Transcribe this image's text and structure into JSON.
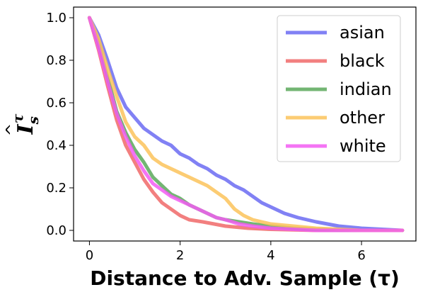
{
  "chart_data": {
    "type": "line",
    "xlabel": "Distance to Adv. Sample (τ)",
    "ylabel": {
      "base": "I",
      "superscript": "τ",
      "subscript": "s",
      "hat": "^"
    },
    "xlim": [
      -0.35,
      7.2
    ],
    "ylim": [
      -0.05,
      1.05
    ],
    "x_ticks": [
      0,
      2,
      4,
      6
    ],
    "y_ticks": [
      0.0,
      0.2,
      0.4,
      0.6,
      0.8,
      1.0
    ],
    "x_tick_labels": [
      "0",
      "2",
      "4",
      "6"
    ],
    "y_tick_labels": [
      "0.0",
      "0.2",
      "0.4",
      "0.6",
      "0.8",
      "1.0"
    ],
    "grid": false,
    "legend_position": "top-right",
    "series": [
      {
        "name": "asian",
        "color": "#6b6bf2",
        "x": [
          0,
          0.2,
          0.4,
          0.6,
          0.8,
          1.0,
          1.2,
          1.4,
          1.6,
          1.8,
          2.0,
          2.2,
          2.4,
          2.6,
          2.8,
          3.0,
          3.2,
          3.4,
          3.6,
          3.8,
          4.0,
          4.3,
          4.6,
          5.0,
          5.5,
          6.0,
          6.9
        ],
        "values": [
          1.0,
          0.92,
          0.8,
          0.67,
          0.58,
          0.53,
          0.48,
          0.45,
          0.42,
          0.4,
          0.36,
          0.34,
          0.31,
          0.29,
          0.26,
          0.24,
          0.21,
          0.19,
          0.16,
          0.13,
          0.11,
          0.08,
          0.06,
          0.04,
          0.02,
          0.01,
          0.0
        ]
      },
      {
        "name": "black",
        "color": "#f06868",
        "x": [
          0,
          0.2,
          0.4,
          0.6,
          0.8,
          1.0,
          1.2,
          1.4,
          1.6,
          1.8,
          2.0,
          2.2,
          2.5,
          3.0,
          3.5,
          4.0,
          5.0,
          6.0,
          6.9
        ],
        "values": [
          1.0,
          0.85,
          0.68,
          0.52,
          0.4,
          0.32,
          0.24,
          0.18,
          0.13,
          0.1,
          0.07,
          0.05,
          0.04,
          0.02,
          0.01,
          0.005,
          0.0,
          0.0,
          0.0
        ]
      },
      {
        "name": "indian",
        "color": "#5aa85a",
        "x": [
          0,
          0.2,
          0.4,
          0.6,
          0.8,
          1.0,
          1.2,
          1.4,
          1.6,
          1.8,
          2.0,
          2.2,
          2.4,
          2.6,
          2.8,
          3.0,
          3.3,
          3.6,
          4.0,
          4.5,
          5.0,
          6.0,
          6.9
        ],
        "values": [
          1.0,
          0.88,
          0.72,
          0.56,
          0.46,
          0.38,
          0.32,
          0.25,
          0.21,
          0.17,
          0.15,
          0.12,
          0.1,
          0.08,
          0.06,
          0.05,
          0.04,
          0.03,
          0.02,
          0.01,
          0.005,
          0.0,
          0.0
        ]
      },
      {
        "name": "other",
        "color": "#fbc35a",
        "x": [
          0,
          0.2,
          0.4,
          0.6,
          0.8,
          1.0,
          1.2,
          1.4,
          1.6,
          1.8,
          2.0,
          2.2,
          2.4,
          2.6,
          2.8,
          3.0,
          3.2,
          3.4,
          3.6,
          3.8,
          4.0,
          4.5,
          5.0,
          6.0,
          6.9
        ],
        "values": [
          1.0,
          0.9,
          0.76,
          0.63,
          0.51,
          0.44,
          0.4,
          0.34,
          0.31,
          0.29,
          0.27,
          0.25,
          0.23,
          0.21,
          0.18,
          0.15,
          0.1,
          0.07,
          0.05,
          0.04,
          0.03,
          0.02,
          0.01,
          0.0,
          0.0
        ]
      },
      {
        "name": "white",
        "color": "#f25cf2",
        "x": [
          0,
          0.2,
          0.4,
          0.6,
          0.8,
          1.0,
          1.2,
          1.4,
          1.6,
          1.8,
          2.0,
          2.2,
          2.4,
          2.6,
          2.8,
          3.0,
          3.3,
          3.6,
          4.0,
          4.5,
          5.0,
          6.0,
          6.9
        ],
        "values": [
          1.0,
          0.86,
          0.7,
          0.55,
          0.44,
          0.35,
          0.28,
          0.22,
          0.19,
          0.16,
          0.14,
          0.12,
          0.1,
          0.08,
          0.06,
          0.05,
          0.03,
          0.02,
          0.01,
          0.005,
          0.0,
          0.0,
          0.0
        ]
      }
    ]
  }
}
